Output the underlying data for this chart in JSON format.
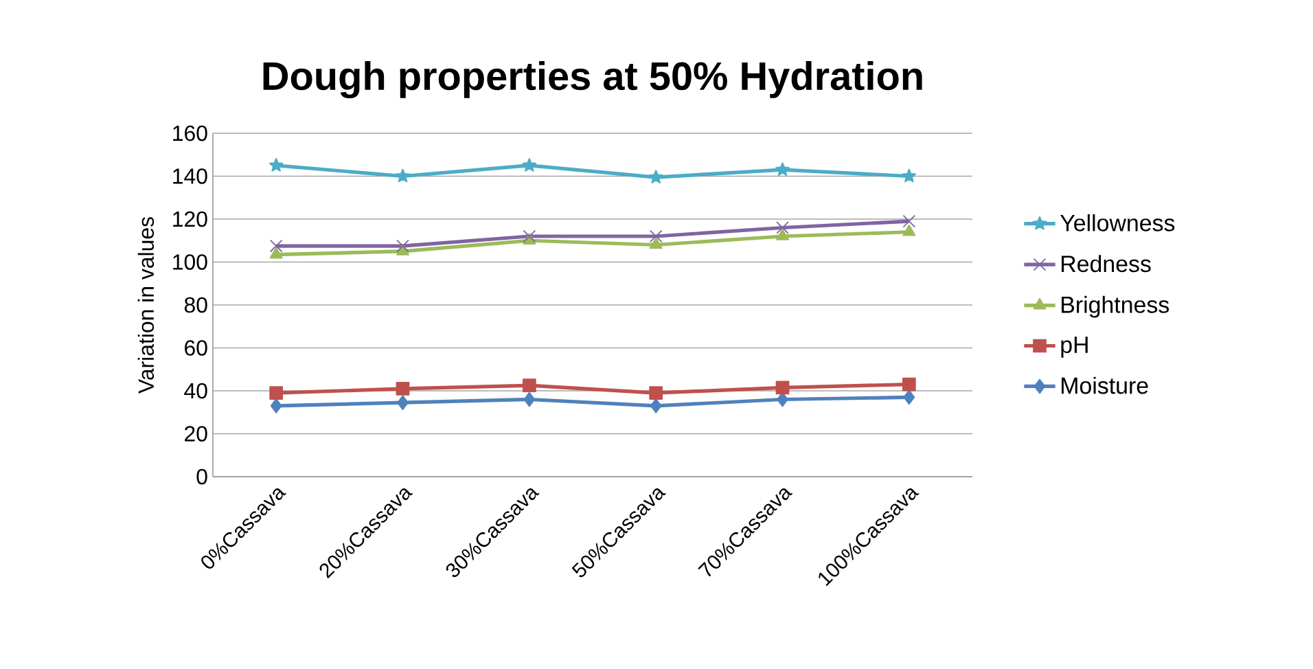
{
  "chart_data": {
    "type": "line",
    "title": "Dough properties at 50% Hydration",
    "ylabel": "Variation in values",
    "categories": [
      "0%Cassava",
      "20%Cassava",
      "30%Cassava",
      "50%Cassava",
      "70%Cassava",
      "100%Cassava"
    ],
    "series": [
      {
        "name": "Yellowness",
        "color": "#4bacc6",
        "marker": "star",
        "values": [
          145,
          140,
          145,
          139.5,
          143,
          140
        ]
      },
      {
        "name": "Redness",
        "color": "#8064a2",
        "marker": "cross",
        "values": [
          107.5,
          107.5,
          112,
          112,
          116,
          119
        ]
      },
      {
        "name": "Brightness",
        "color": "#9bbb59",
        "marker": "triangle",
        "values": [
          103.5,
          105,
          110,
          108,
          112,
          114
        ]
      },
      {
        "name": "pH",
        "color": "#c0504d",
        "marker": "square",
        "values": [
          39,
          41,
          42.5,
          39,
          41.5,
          43
        ]
      },
      {
        "name": "Moisture",
        "color": "#4f81bd",
        "marker": "diamond",
        "values": [
          33,
          34.5,
          36,
          33,
          36,
          37
        ]
      }
    ],
    "ylim": [
      0,
      160
    ],
    "yticks": [
      0,
      20,
      40,
      60,
      80,
      100,
      120,
      140,
      160
    ],
    "grid": "y",
    "legend": "right"
  }
}
